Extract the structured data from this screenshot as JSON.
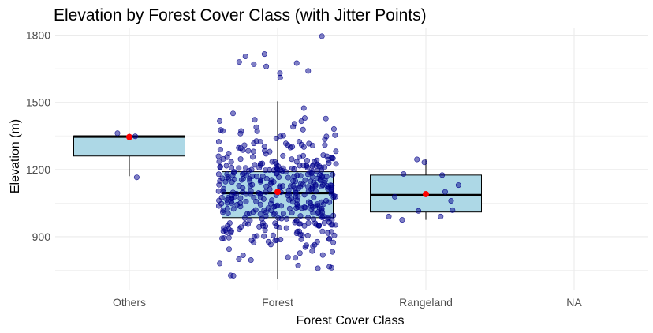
{
  "chart_data": {
    "type": "box",
    "title": "Elevation by Forest Cover Class (with Jitter Points)",
    "xlabel": "Forest Cover Class",
    "ylabel": "Elevation (m)",
    "categories": [
      "Others",
      "Forest",
      "Rangeland",
      "NA"
    ],
    "ylim": [
      660,
      1830
    ],
    "yticks": [
      900,
      1200,
      1500,
      1800
    ],
    "grid": true,
    "colors": {
      "box_fill": "#add8e6",
      "point_fill": "#00008b",
      "mean_point": "#ff0000",
      "grid": "#ebebeb"
    },
    "boxes": [
      {
        "category": "Others",
        "min": 1170,
        "q1": 1260,
        "median": 1347,
        "q3": 1350,
        "max": 1360,
        "mean": 1345
      },
      {
        "category": "Forest",
        "min": 710,
        "q1": 985,
        "median": 1095,
        "q3": 1190,
        "max": 1505,
        "mean": 1100
      },
      {
        "category": "Rangeland",
        "min": 975,
        "q1": 1010,
        "median": 1085,
        "q3": 1175,
        "max": 1245,
        "mean": 1090
      },
      {
        "category": "NA"
      }
    ],
    "jitter_points": {
      "Others": [
        {
          "dx": -0.08,
          "y": 1362
        },
        {
          "dx": 0.04,
          "y": 1348
        },
        {
          "dx": 0.05,
          "y": 1165
        }
      ],
      "Rangeland": [
        {
          "dx": -0.15,
          "y": 1180
        },
        {
          "dx": -0.06,
          "y": 1245
        },
        {
          "dx": -0.01,
          "y": 1232
        },
        {
          "dx": 0.11,
          "y": 1175
        },
        {
          "dx": 0.22,
          "y": 1130
        },
        {
          "dx": -0.21,
          "y": 1078
        },
        {
          "dx": 0.13,
          "y": 1100
        },
        {
          "dx": 0.17,
          "y": 1060
        },
        {
          "dx": -0.25,
          "y": 990
        },
        {
          "dx": -0.16,
          "y": 975
        },
        {
          "dx": 0.1,
          "y": 990
        },
        {
          "dx": 0.18,
          "y": 1018
        },
        {
          "dx": -0.05,
          "y": 1015
        }
      ],
      "Forest": {
        "count": 420,
        "high_points": [
          1795,
          1715,
          1705,
          1680,
          1675,
          1670,
          1660,
          1640,
          1630,
          1610
        ]
      }
    }
  }
}
